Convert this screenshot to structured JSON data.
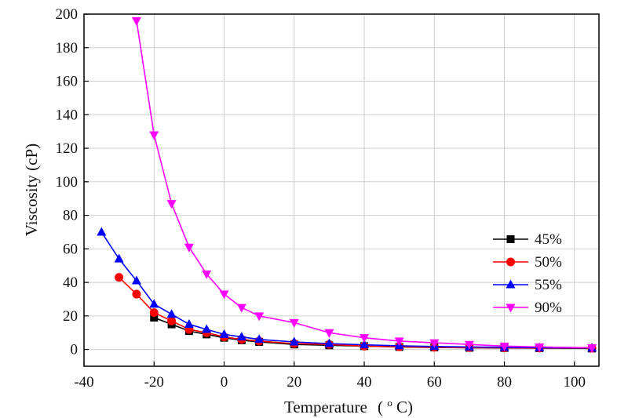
{
  "chart_data": {
    "type": "line",
    "xlabel_main": "Temperature",
    "xlabel_unit": "(",
    "xlabel_deg": "o",
    "xlabel_tail": "C)",
    "ylabel": "Viscosity (cP)",
    "xlim": [
      -40,
      107
    ],
    "ylim": [
      -10,
      200
    ],
    "xticks": [
      -40,
      -20,
      0,
      20,
      40,
      60,
      80,
      100
    ],
    "yticks": [
      0,
      20,
      40,
      60,
      80,
      100,
      120,
      140,
      160,
      180,
      200
    ],
    "grid": true,
    "legend_position": "right",
    "series": [
      {
        "name": "45%",
        "color": "#000000",
        "marker": "square",
        "x": [
          -20,
          -15,
          -10,
          -5,
          0,
          5,
          10,
          20,
          30,
          40,
          50,
          60,
          70,
          80,
          90,
          105
        ],
        "y": [
          19,
          15,
          11,
          9,
          7,
          5.5,
          4.5,
          3,
          2.5,
          2,
          1.5,
          1.2,
          1,
          0.9,
          0.8,
          0.6
        ]
      },
      {
        "name": "50%",
        "color": "#ff0000",
        "marker": "circle",
        "x": [
          -30,
          -25,
          -20,
          -15,
          -10,
          -5,
          0,
          5,
          10,
          20,
          30,
          40,
          50,
          60,
          70,
          80,
          90,
          105
        ],
        "y": [
          43,
          33,
          22,
          17,
          12,
          10,
          7.5,
          6,
          5,
          3.5,
          3,
          2,
          1.6,
          1.3,
          1.1,
          1,
          0.9,
          0.7
        ]
      },
      {
        "name": "55%",
        "color": "#0000ff",
        "marker": "triangle-up",
        "x": [
          -35,
          -30,
          -25,
          -20,
          -15,
          -10,
          -5,
          0,
          5,
          10,
          20,
          30,
          40,
          50,
          60,
          70,
          80,
          90,
          105
        ],
        "y": [
          70,
          54,
          41,
          27,
          21,
          15,
          12,
          9,
          7.5,
          6,
          4.5,
          3.5,
          2.8,
          2.2,
          1.8,
          1.5,
          1.3,
          1.1,
          0.9
        ]
      },
      {
        "name": "90%",
        "color": "#ff00ff",
        "marker": "triangle-down",
        "x": [
          -25,
          -20,
          -15,
          -10,
          -5,
          0,
          5,
          10,
          20,
          30,
          40,
          50,
          60,
          70,
          80,
          90,
          105
        ],
        "y": [
          196,
          128,
          87,
          61,
          45,
          33,
          25,
          20,
          16,
          10,
          7,
          5,
          4,
          3,
          2,
          1.5,
          1
        ]
      }
    ]
  }
}
